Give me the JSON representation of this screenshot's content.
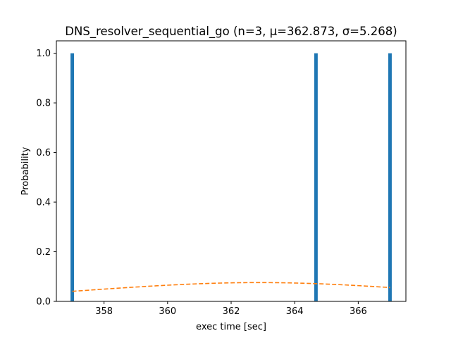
{
  "chart_data": {
    "type": "bar",
    "title": "DNS_resolver_sequential_go (n=3, μ=362.873, σ=5.268)",
    "xlabel": "exec time [sec]",
    "ylabel": "Probability",
    "xlim": [
      356.5,
      367.5
    ],
    "ylim": [
      0.0,
      1.05
    ],
    "xticks": [
      358,
      360,
      362,
      364,
      366
    ],
    "yticks": [
      0.0,
      0.2,
      0.4,
      0.6,
      0.8,
      1.0
    ],
    "xtick_labels": [
      "358",
      "360",
      "362",
      "364",
      "366"
    ],
    "ytick_labels": [
      "0.0",
      "0.2",
      "0.4",
      "0.6",
      "0.8",
      "1.0"
    ],
    "bar_width": 0.11,
    "series": [
      {
        "type": "bar",
        "color": "#1f77b4",
        "x": [
          357.0,
          364.67,
          367.0
        ],
        "values": [
          1.0,
          1.0,
          1.0
        ]
      },
      {
        "type": "line",
        "style": "dashed",
        "color": "#ff7f0e",
        "mu": 362.873,
        "sigma": 5.268,
        "x_range": [
          357.0,
          367.0
        ]
      }
    ],
    "grid": false,
    "legend": "none"
  }
}
